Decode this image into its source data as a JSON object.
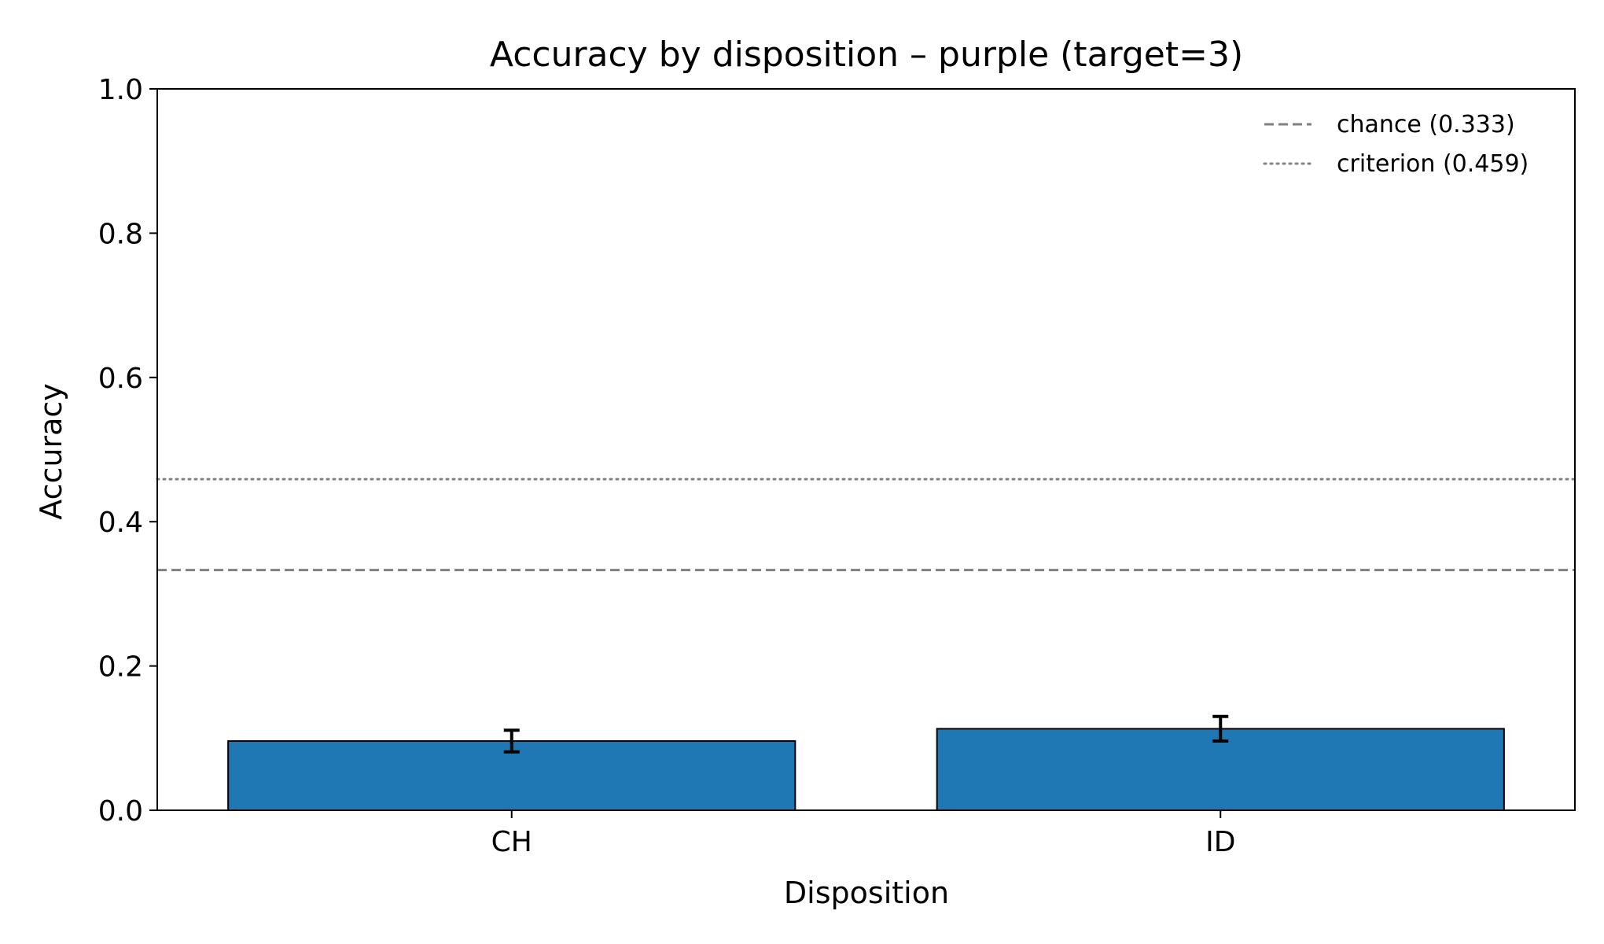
{
  "chart_data": {
    "type": "bar",
    "title": "Accuracy by disposition – purple (target=3)",
    "xlabel": "Disposition",
    "ylabel": "Accuracy",
    "ylim": [
      0,
      1.0
    ],
    "yticks": [
      "0.0",
      "0.2",
      "0.4",
      "0.6",
      "0.8",
      "1.0"
    ],
    "categories": [
      "CH",
      "ID"
    ],
    "values": [
      0.096,
      0.113
    ],
    "errors": [
      0.015,
      0.017
    ],
    "bar_color": "#1f77b4",
    "bar_edge_color": "#000000",
    "reference_lines": [
      {
        "label": "chance (0.333)",
        "value": 0.333,
        "style": "dashed",
        "color": "#808080"
      },
      {
        "label": "criterion (0.459)",
        "value": 0.459,
        "style": "dotted",
        "color": "#808080"
      }
    ],
    "legend_position": "top-right",
    "grid": false
  }
}
